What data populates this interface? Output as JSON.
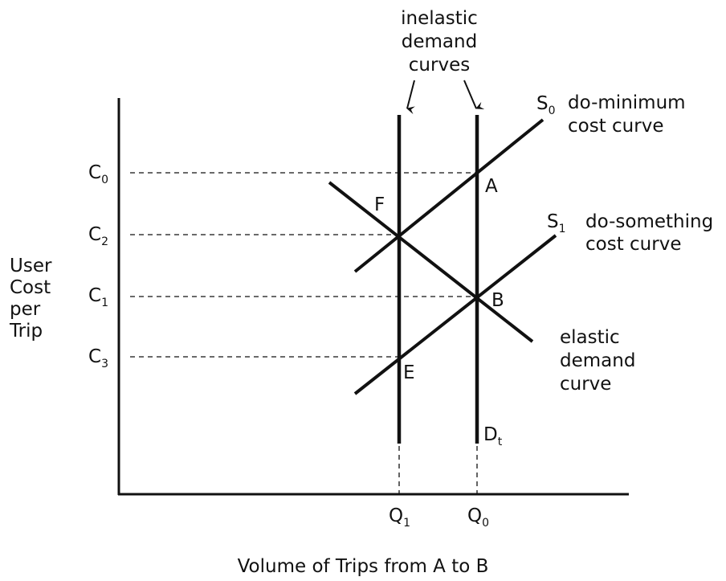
{
  "y_axis_label": [
    "User",
    "Cost",
    "per",
    "Trip"
  ],
  "x_axis_label": "Volume of Trips from A to B",
  "inelastic_label": [
    "inelastic",
    "demand",
    "curves"
  ],
  "s0": {
    "base": "S",
    "sub": "0",
    "label": [
      "do-minimum",
      "cost curve"
    ]
  },
  "s1": {
    "base": "S",
    "sub": "1",
    "label": [
      "do-something",
      "cost curve"
    ]
  },
  "elastic_label": [
    "elastic",
    "demand",
    "curve"
  ],
  "cost_levels": [
    {
      "base": "C",
      "sub": "0"
    },
    {
      "base": "C",
      "sub": "2"
    },
    {
      "base": "C",
      "sub": "1"
    },
    {
      "base": "C",
      "sub": "3"
    }
  ],
  "volumes": [
    {
      "base": "Q",
      "sub": "1"
    },
    {
      "base": "Q",
      "sub": "0"
    }
  ],
  "points": [
    "A",
    "F",
    "B",
    "E"
  ],
  "demand_label": {
    "base": "D",
    "sub": "t"
  }
}
